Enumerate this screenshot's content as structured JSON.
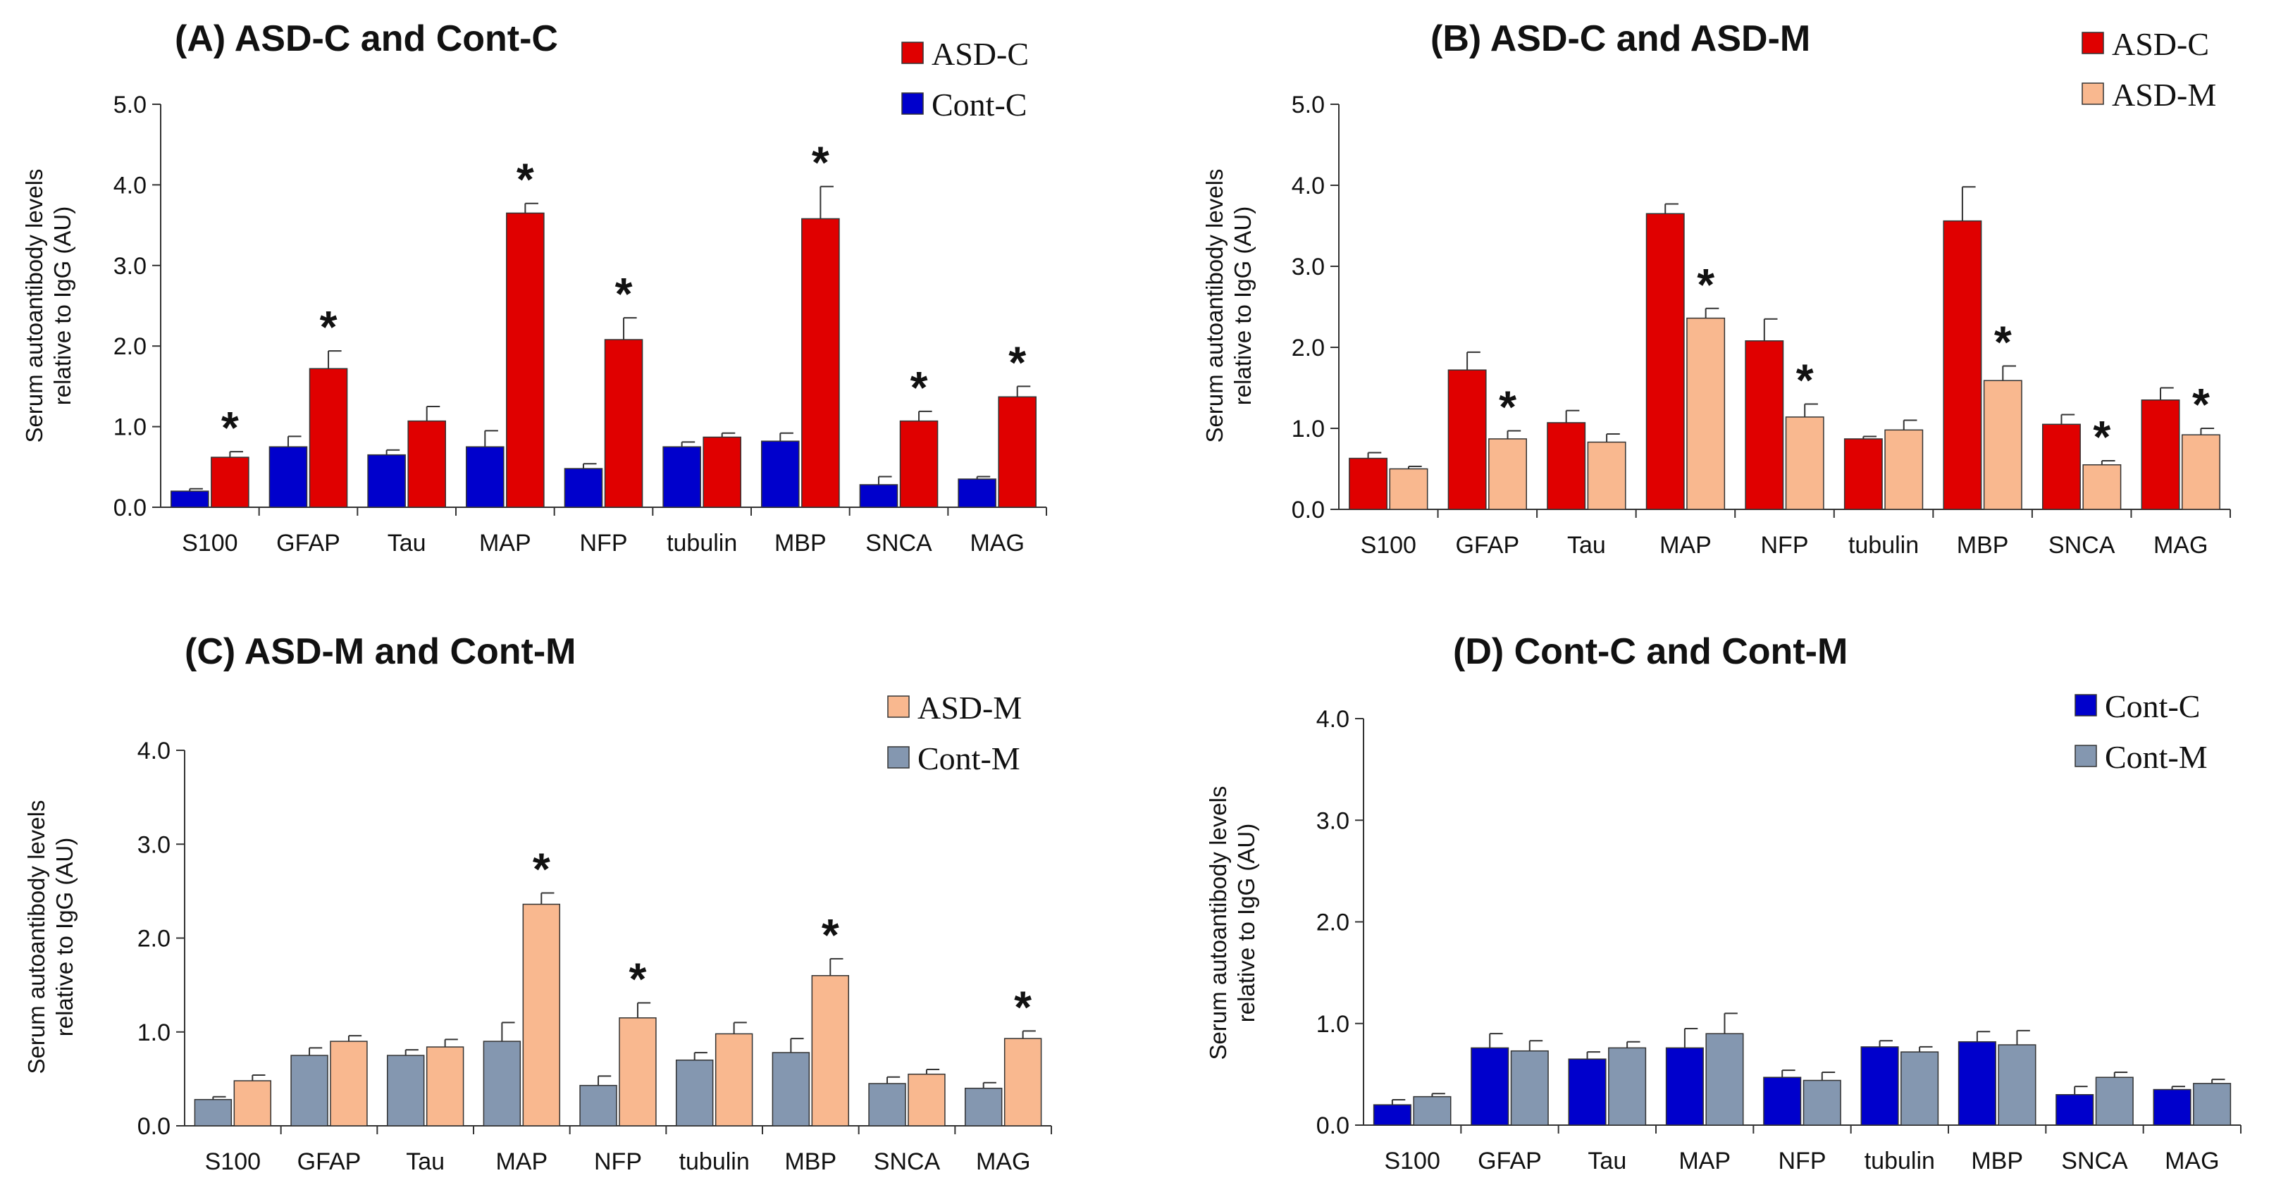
{
  "colors": {
    "ASD-C": "#e00000",
    "Cont-C": "#0000cc",
    "ASD-M": "#f9b88f",
    "Cont-M": "#8497b0"
  },
  "chart_data": [
    {
      "type": "bar",
      "title": "(A) ASD-C and Cont-C",
      "ylabel": "Serum autoantibody levels relative to IgG (AU)",
      "ylabel_lines": [
        "Serum autoantibody levels",
        "relative to IgG (AU)"
      ],
      "xlabel": "",
      "ylim": [
        0,
        5
      ],
      "yticks": [
        "0.0",
        "1.0",
        "2.0",
        "3.0",
        "4.0",
        "5.0"
      ],
      "categories": [
        "S100",
        "GFAP",
        "Tau",
        "MAP",
        "NFP",
        "tubulin",
        "MBP",
        "SNCA",
        "MAG"
      ],
      "legend_position": "top-right",
      "series": [
        {
          "name": "Cont-C",
          "color_key": "Cont-C",
          "values": [
            0.2,
            0.75,
            0.65,
            0.75,
            0.48,
            0.75,
            0.82,
            0.28,
            0.35
          ],
          "errors": [
            0.03,
            0.13,
            0.06,
            0.2,
            0.06,
            0.06,
            0.1,
            0.1,
            0.03
          ]
        },
        {
          "name": "ASD-C",
          "color_key": "ASD-C",
          "values": [
            0.62,
            1.72,
            1.07,
            3.65,
            2.08,
            0.87,
            3.58,
            1.07,
            1.37
          ],
          "errors": [
            0.07,
            0.22,
            0.18,
            0.12,
            0.27,
            0.05,
            0.4,
            0.12,
            0.13
          ]
        }
      ],
      "significance_marker": "*",
      "significant": [
        true,
        true,
        false,
        true,
        true,
        false,
        true,
        true,
        true
      ]
    },
    {
      "type": "bar",
      "title": "(B) ASD-C and ASD-M",
      "ylabel": "Serum autoantibody levels relative to IgG (AU)",
      "ylabel_lines": [
        "Serum autoantibody levels",
        "relative to IgG (AU)"
      ],
      "xlabel": "",
      "ylim": [
        0,
        5
      ],
      "yticks": [
        "0.0",
        "1.0",
        "2.0",
        "3.0",
        "4.0",
        "5.0"
      ],
      "categories": [
        "S100",
        "GFAP",
        "Tau",
        "MAP",
        "NFP",
        "tubulin",
        "MBP",
        "SNCA",
        "MAG"
      ],
      "legend_position": "top-right",
      "series": [
        {
          "name": "ASD-C",
          "color_key": "ASD-C",
          "values": [
            0.63,
            1.72,
            1.07,
            3.65,
            2.08,
            0.87,
            3.56,
            1.05,
            1.35
          ],
          "errors": [
            0.07,
            0.22,
            0.15,
            0.12,
            0.27,
            0.03,
            0.42,
            0.12,
            0.15
          ]
        },
        {
          "name": "ASD-M",
          "color_key": "ASD-M",
          "values": [
            0.5,
            0.87,
            0.83,
            2.36,
            1.14,
            0.98,
            1.59,
            0.55,
            0.92
          ],
          "errors": [
            0.03,
            0.1,
            0.1,
            0.12,
            0.16,
            0.12,
            0.18,
            0.05,
            0.08
          ]
        }
      ],
      "significance_marker": "*",
      "significant": [
        false,
        true,
        false,
        true,
        true,
        false,
        true,
        true,
        true
      ]
    },
    {
      "type": "bar",
      "title": "(C) ASD-M and Cont-M",
      "ylabel": "Serum autoantibody levels relative to IgG (AU)",
      "ylabel_lines": [
        "Serum autoantibody levels",
        "relative to IgG (AU)"
      ],
      "xlabel": "",
      "ylim": [
        0,
        4
      ],
      "yticks": [
        "0.0",
        "1.0",
        "2.0",
        "3.0",
        "4.0"
      ],
      "categories": [
        "S100",
        "GFAP",
        "Tau",
        "MAP",
        "NFP",
        "tubulin",
        "MBP",
        "SNCA",
        "MAG"
      ],
      "legend_position": "top-right",
      "series": [
        {
          "name": "Cont-M",
          "color_key": "Cont-M",
          "values": [
            0.28,
            0.75,
            0.75,
            0.9,
            0.43,
            0.7,
            0.78,
            0.45,
            0.4
          ],
          "errors": [
            0.03,
            0.08,
            0.06,
            0.2,
            0.1,
            0.08,
            0.15,
            0.07,
            0.06
          ]
        },
        {
          "name": "ASD-M",
          "color_key": "ASD-M",
          "values": [
            0.48,
            0.9,
            0.84,
            2.36,
            1.15,
            0.98,
            1.6,
            0.55,
            0.93
          ],
          "errors": [
            0.06,
            0.06,
            0.08,
            0.12,
            0.16,
            0.12,
            0.18,
            0.05,
            0.08
          ]
        }
      ],
      "significance_marker": "*",
      "significant": [
        false,
        false,
        false,
        true,
        true,
        false,
        true,
        false,
        true
      ]
    },
    {
      "type": "bar",
      "title": "(D) Cont-C and Cont-M",
      "ylabel": "Serum autoantibody levels relative to IgG (AU)",
      "ylabel_lines": [
        "Serum autoantibody levels",
        "relative to IgG (AU)"
      ],
      "xlabel": "",
      "ylim": [
        0,
        4
      ],
      "yticks": [
        "0.0",
        "1.0",
        "2.0",
        "3.0",
        "4.0"
      ],
      "categories": [
        "S100",
        "GFAP",
        "Tau",
        "MAP",
        "NFP",
        "tubulin",
        "MBP",
        "SNCA",
        "MAG"
      ],
      "legend_position": "top-right",
      "series": [
        {
          "name": "Cont-C",
          "color_key": "Cont-C",
          "values": [
            0.2,
            0.76,
            0.65,
            0.76,
            0.47,
            0.77,
            0.82,
            0.3,
            0.35
          ],
          "errors": [
            0.05,
            0.14,
            0.07,
            0.19,
            0.07,
            0.06,
            0.1,
            0.08,
            0.03
          ]
        },
        {
          "name": "Cont-M",
          "color_key": "Cont-M",
          "values": [
            0.28,
            0.73,
            0.76,
            0.9,
            0.44,
            0.72,
            0.79,
            0.47,
            0.41
          ],
          "errors": [
            0.03,
            0.1,
            0.06,
            0.2,
            0.08,
            0.05,
            0.14,
            0.05,
            0.04
          ]
        }
      ],
      "significance_marker": "*",
      "significant": [
        false,
        false,
        false,
        false,
        false,
        false,
        false,
        false,
        false
      ]
    }
  ]
}
